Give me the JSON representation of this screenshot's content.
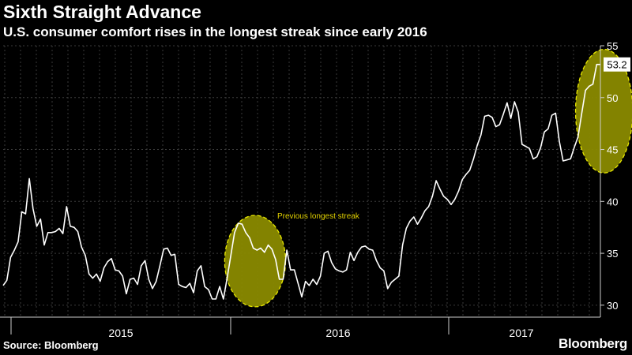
{
  "header": {
    "title": "Sixth Straight Advance",
    "subtitle": "U.S. consumer comfort rises in the longest streak since early 2016"
  },
  "footer": {
    "source": "Source: Bloomberg",
    "brand": "Bloomberg"
  },
  "colors": {
    "background": "#000000",
    "line": "#ffffff",
    "grid": "#3a3a3a",
    "highlight_fill": "#8a8a00",
    "highlight_stroke": "#e8e800",
    "annotation": "#e0d000",
    "text": "#ffffff"
  },
  "chart_data": {
    "type": "line",
    "title": "Sixth Straight Advance",
    "subtitle": "U.S. consumer comfort rises in the longest streak since early 2016",
    "ylim": [
      29,
      55
    ],
    "yticks": [
      30,
      35,
      40,
      45,
      50,
      55
    ],
    "y_axis_position": "right",
    "grid": true,
    "x_tick_labels": [
      "2015",
      "2016",
      "2017"
    ],
    "last_value_label": "53.2",
    "annotations": [
      {
        "text": "Previous longest streak",
        "x_range": [
          64,
          71
        ],
        "y_range": [
          30.3,
          38.2
        ]
      },
      {
        "text": "",
        "x_range": [
          158,
          164
        ],
        "y_range": [
          43.2,
          54.2
        ]
      }
    ],
    "series": [
      {
        "values": [
          31.9,
          32.4,
          34.6,
          35.3,
          36.1,
          39.0,
          38.8,
          42.2,
          39.3,
          37.6,
          38.3,
          35.8,
          37.0,
          37.0,
          37.1,
          37.4,
          36.9,
          39.5,
          37.6,
          37.5,
          37.1,
          35.6,
          34.8,
          33.0,
          32.6,
          33.0,
          32.3,
          33.6,
          34.2,
          34.5,
          33.4,
          33.3,
          32.8,
          31.1,
          32.5,
          32.6,
          32.0,
          33.8,
          34.3,
          32.5,
          31.6,
          32.3,
          33.8,
          35.4,
          35.5,
          34.8,
          34.9,
          32.0,
          31.8,
          31.7,
          32.1,
          31.2,
          33.3,
          33.8,
          31.8,
          31.5,
          30.6,
          30.6,
          31.8,
          30.6,
          32.6,
          34.8,
          37.0,
          37.9,
          37.8,
          37.0,
          36.5,
          35.5,
          35.3,
          35.5,
          35.1,
          35.8,
          35.4,
          34.4,
          32.5,
          32.5,
          35.3,
          33.4,
          33.4,
          32.1,
          30.8,
          32.3,
          31.9,
          32.5,
          32.0,
          32.8,
          35.0,
          35.2,
          34.1,
          33.5,
          33.3,
          33.2,
          33.4,
          35.1,
          34.3,
          35.1,
          35.6,
          35.7,
          35.4,
          35.3,
          34.3,
          33.6,
          33.3,
          31.6,
          32.2,
          32.5,
          32.8,
          35.8,
          37.4,
          38.1,
          38.5,
          37.8,
          38.4,
          39.1,
          39.5,
          40.5,
          42.0,
          41.2,
          40.5,
          40.2,
          39.7,
          40.2,
          41.0,
          42.1,
          42.6,
          43.0,
          44.1,
          45.4,
          46.4,
          48.2,
          48.3,
          48.1,
          47.2,
          47.4,
          48.4,
          49.5,
          48.0,
          49.6,
          48.6,
          45.5,
          45.3,
          45.1,
          44.1,
          44.3,
          45.2,
          46.7,
          47.0,
          48.3,
          48.5,
          45.8,
          43.9,
          44.0,
          44.1,
          45.2,
          46.2,
          48.5,
          50.7,
          51.1,
          51.3,
          53.2,
          53.2
        ]
      }
    ]
  }
}
